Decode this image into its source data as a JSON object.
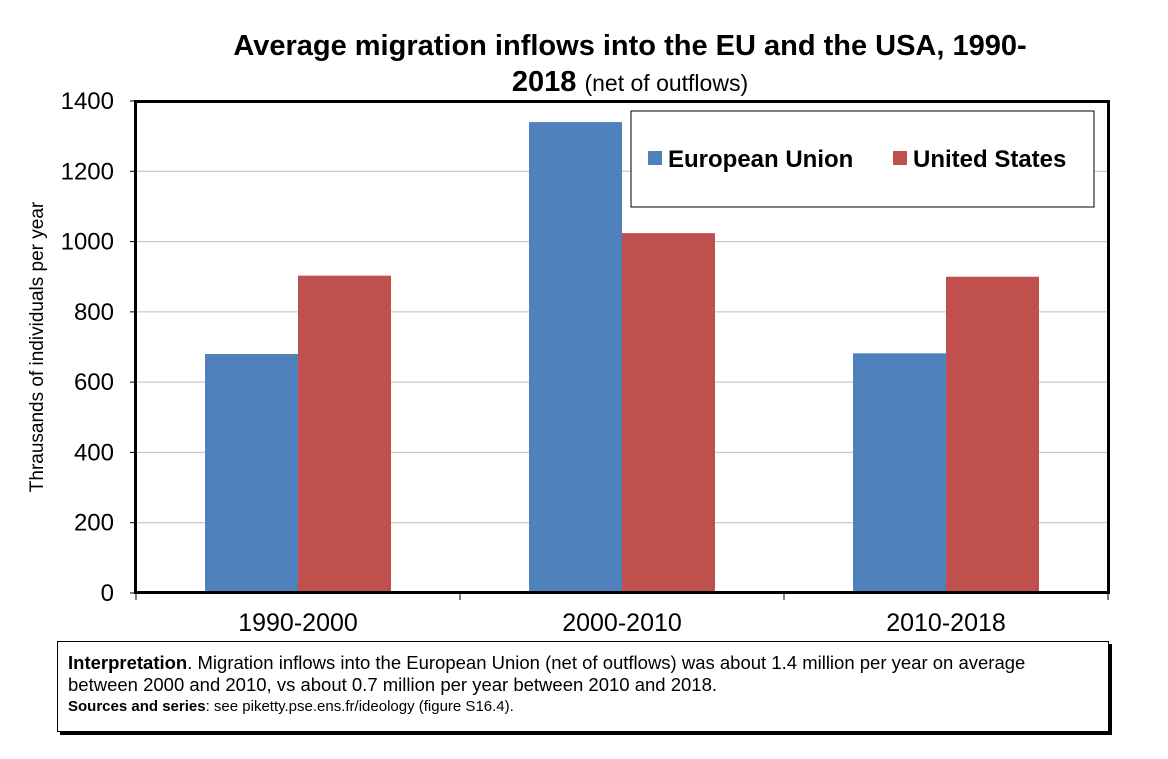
{
  "chart_data": {
    "type": "bar",
    "title": "Average migration inflows into the EU and the USA, 1990-2018",
    "title_line1": "Average migration inflows into the EU and the USA, 1990-",
    "title_line2": "2018",
    "subtitle": "(net of outflows)",
    "ylabel": "Thrausands of individuals per year",
    "xlabel": "",
    "categories": [
      "1990-2000",
      "2000-2010",
      "2010-2018"
    ],
    "series": [
      {
        "name": "European Union",
        "values": [
          680,
          1340,
          682
        ],
        "color": "#4F81BD"
      },
      {
        "name": "United States",
        "values": [
          903,
          1024,
          900
        ],
        "color": "#C0504D"
      }
    ],
    "ylim": [
      0,
      1400
    ],
    "yticks": [
      0,
      200,
      400,
      600,
      800,
      1000,
      1200,
      1400
    ],
    "grid": true,
    "legend": "top-right"
  },
  "note": {
    "interpretation_label": "Interpretation",
    "interpretation_text": ". Migration inflows into the European Union (net of outflows) was about 1.4 million per year on average between 2000 and 2010, vs about 0.7 million per year between 2010 and 2018.",
    "sources_label": "Sources and series",
    "sources_text": ": see piketty.pse.ens.fr/ideology (figure S16.4)."
  }
}
